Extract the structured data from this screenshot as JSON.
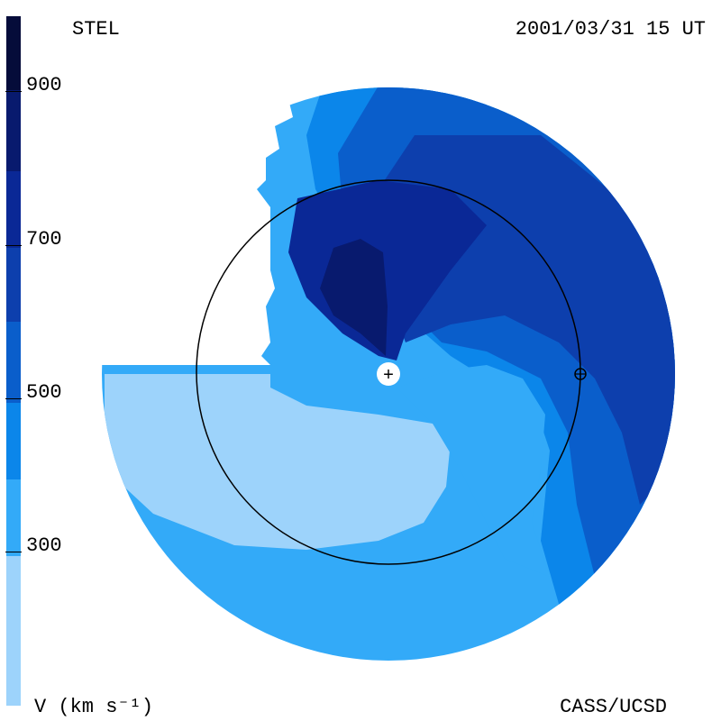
{
  "header": {
    "title": "STEL",
    "timestamp": "2001/03/31 15 UT"
  },
  "footer": {
    "units_label": "V (km s⁻¹)",
    "credit": "CASS/UCSD"
  },
  "colorbar": {
    "ticks": [
      "900",
      "700",
      "500",
      "300"
    ],
    "colors": [
      "#050c3a",
      "#081a6e",
      "#0a2896",
      "#0d3fad",
      "#0a5ecb",
      "#0b86ea",
      "#33aaf8",
      "#9dd3fb"
    ]
  },
  "map": {
    "sun_marker": "+",
    "earth_marker": "⊕",
    "colors": {
      "lightest": "#9dd3fb",
      "light": "#33aaf8",
      "mid": "#0b86ea",
      "medium": "#0a5ecb",
      "dark": "#0d3fad",
      "darker": "#0a2896",
      "darkest": "#081a6e"
    }
  }
}
